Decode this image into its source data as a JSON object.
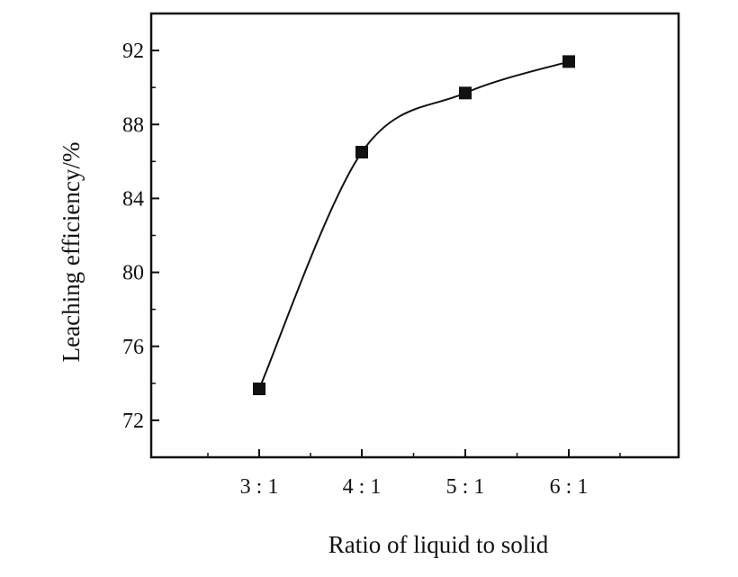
{
  "chart_data": {
    "type": "line",
    "title": "",
    "xlabel": "Ratio of liquid to solid",
    "ylabel": "Leaching efficiency/%",
    "categories": [
      "3 : 1",
      "4 : 1",
      "5 : 1",
      "6 : 1"
    ],
    "series": [
      {
        "values": [
          73.7,
          86.5,
          89.7,
          91.4
        ]
      }
    ],
    "ylim": [
      70,
      94
    ],
    "yticks": [
      72,
      76,
      80,
      84,
      88,
      92
    ],
    "ytick_labels": [
      "72",
      "76",
      "80",
      "84",
      "88",
      "92"
    ],
    "grid": false,
    "legend": "none",
    "marker": "square",
    "line_style": "smooth",
    "colors": {
      "line": "#111111",
      "marker": "#111111",
      "axis": "#111111"
    }
  }
}
